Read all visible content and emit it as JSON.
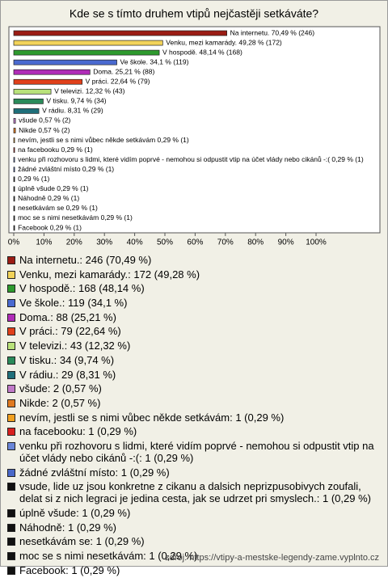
{
  "chart_data": {
    "type": "bar",
    "orientation": "horizontal",
    "title": "Kde se s tímto druhem vtipů nejčastěji setkáváte?",
    "values": [
      70.49,
      49.28,
      48.14,
      34.1,
      25.21,
      22.64,
      12.32,
      9.74,
      8.31,
      0.57,
      0.57,
      0.29,
      0.29,
      0.29,
      0.29,
      0.29,
      0.29,
      0.29,
      0.29,
      0.29,
      0.29
    ],
    "value_labels": [
      "Na internetu. 70,49 % (246)",
      "Venku, mezi kamarády. 49,28 % (172)",
      "V hospodě. 48,14 % (168)",
      "Ve škole. 34,1 % (119)",
      "Doma. 25,21 % (88)",
      "V práci. 22,64 % (79)",
      "V televizi. 12,32 % (43)",
      "V tisku. 9,74 % (34)",
      "V rádiu. 8,31 % (29)",
      "všude 0,57 % (2)",
      "Nikde 0,57 % (2)",
      "nevím, jestli se s nimi vůbec někde setkávám 0,29 % (1)",
      "na facebooku 0,29 % (1)",
      "venku při rozhovoru s lidmi, které vidím poprvé - nemohou si odpustit vtip na účet vlády nebo cikánů -:( 0,29 % (1)",
      "žádné zvláštní místo 0,29 % (1)",
      "0,29 % (1)",
      "úplně všude 0,29 % (1)",
      "Náhodně 0,29 % (1)",
      "nesetkávám se 0,29 % (1)",
      "moc se s nimi nesetkávám 0,29 % (1)",
      "Facebook 0,29 % (1)"
    ],
    "colors": [
      "#9b1c14",
      "#f2d35a",
      "#2e9a2e",
      "#4a6ad0",
      "#b02cb8",
      "#e0401a",
      "#b9e27a",
      "#2a8a5a",
      "#1f6f7a",
      "#c07ac8",
      "#e07a20",
      "#f0a020",
      "#d82020",
      "#6a86d8",
      "#4a68c8",
      "#111111",
      "#111111",
      "#111111",
      "#111111",
      "#111111",
      "#111111"
    ],
    "legend": [
      "Na internetu.: 246 (70,49 %)",
      "Venku, mezi kamarády.: 172 (49,28 %)",
      "V hospodě.: 168 (48,14 %)",
      "Ve škole.: 119 (34,1 %)",
      "Doma.: 88 (25,21 %)",
      "V práci.: 79 (22,64 %)",
      "V televizi.: 43 (12,32 %)",
      "V tisku.: 34 (9,74 %)",
      "V rádiu.: 29 (8,31 %)",
      "všude: 2 (0,57 %)",
      "Nikde: 2 (0,57 %)",
      "nevím, jestli se s nimi vůbec někde setkávám: 1 (0,29 %)",
      "na facebooku: 1 (0,29 %)",
      "venku při rozhovoru s lidmi, které vidím poprvé - nemohou si odpustit vtip na účet vlády nebo cikánů -:(: 1 (0,29 %)",
      "žádné zvláštní místo: 1 (0,29 %)",
      "vsude, lide uz jsou konkretne z cikanu a dalsich neprizpusobivych zoufali, delat si z nich legraci je jedina cesta, jak se udrzet pri smyslech.: 1 (0,29 %)",
      "úplně všude: 1 (0,29 %)",
      "Náhodně: 1 (0,29 %)",
      "nesetkávám se: 1 (0,29 %)",
      "moc se s nimi nesetkávám: 1 (0,29 %)",
      "Facebook: 1 (0,29 %)"
    ],
    "xlim": [
      0,
      100
    ],
    "xticks": [
      {
        "value": 0,
        "label": "0%"
      },
      {
        "value": 10,
        "label": "10%"
      },
      {
        "value": 20,
        "label": "20%"
      },
      {
        "value": 30,
        "label": "30%"
      },
      {
        "value": 40,
        "label": "40%"
      },
      {
        "value": 50,
        "label": "50%"
      },
      {
        "value": 60,
        "label": "60%"
      },
      {
        "value": 70,
        "label": "70%"
      },
      {
        "value": 80,
        "label": "80%"
      },
      {
        "value": 90,
        "label": "90%"
      },
      {
        "value": 100,
        "label": "100%"
      }
    ],
    "source": "zdroj: https://vtipy-a-mestske-legendy-zame.vyplnto.cz"
  }
}
